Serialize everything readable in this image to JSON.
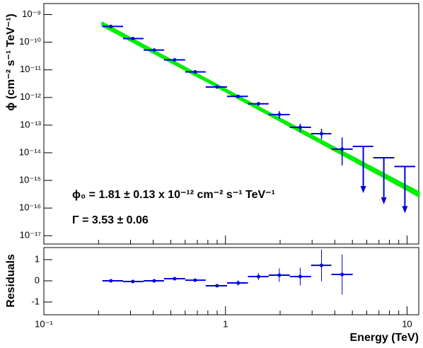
{
  "chart_data": [
    {
      "type": "scatter",
      "ylabel": "ϕ (cm⁻² s⁻¹ TeV⁻¹)",
      "ylog": true,
      "ylim": [
        5e-18,
        2.5e-09
      ],
      "yticks": [
        {
          "value": 1e-09,
          "label": "10⁻⁹"
        },
        {
          "value": 1e-10,
          "label": "10⁻¹⁰"
        },
        {
          "value": 1e-11,
          "label": "10⁻¹¹"
        },
        {
          "value": 1e-12,
          "label": "10⁻¹²"
        },
        {
          "value": 1e-13,
          "label": "10⁻¹³"
        },
        {
          "value": 1e-14,
          "label": "10⁻¹⁴"
        },
        {
          "value": 1e-15,
          "label": "10⁻¹⁵"
        },
        {
          "value": 1e-16,
          "label": "10⁻¹⁶"
        },
        {
          "value": 1e-17,
          "label": "10⁻¹⁷"
        }
      ],
      "annotations": [
        "ϕ₀ = 1.81 ± 0.13  x 10⁻¹² cm⁻² s⁻¹ TeV⁻¹",
        "Γ = 3.53 ± 0.06"
      ],
      "fit": {
        "color": "#00ee00",
        "norm": 1.81e-12,
        "norm_err": 1.3e-13,
        "index": 3.53,
        "index_err": 0.06,
        "xrange": [
          0.21,
          11.6
        ]
      },
      "points": {
        "color": "#0000dd",
        "x": [
          0.234,
          0.309,
          0.405,
          0.525,
          0.681,
          0.898,
          1.175,
          1.52,
          1.98,
          2.58,
          3.38,
          4.39
        ],
        "values": [
          3.7e-10,
          1.35e-10,
          5.2e-11,
          2.3e-11,
          8.4e-12,
          2.4e-12,
          1.1e-12,
          5.9e-13,
          2.4e-13,
          8.3e-14,
          4.9e-14,
          1.35e-14
        ],
        "y_low": [
          3.4e-10,
          1.24e-10,
          4.8e-11,
          2.1e-11,
          7.6e-12,
          2.15e-12,
          9.6e-13,
          5e-13,
          1.7e-13,
          5.5e-14,
          3.1e-14,
          3.5e-15
        ],
        "y_high": [
          4e-10,
          1.46e-10,
          5.6e-11,
          2.5e-11,
          9.2e-12,
          2.65e-12,
          1.25e-12,
          6.8e-13,
          3.2e-13,
          1.12e-13,
          7.4e-14,
          3.6e-14
        ],
        "x_low": [
          0.21,
          0.273,
          0.354,
          0.459,
          0.6,
          0.778,
          1.02,
          1.33,
          1.73,
          2.26,
          2.96,
          3.83
        ],
        "x_high": [
          0.273,
          0.354,
          0.459,
          0.6,
          0.778,
          1.02,
          1.33,
          1.73,
          2.26,
          2.96,
          3.83,
          5.02
        ]
      },
      "upper_limits": {
        "color": "#0000dd",
        "x": [
          5.74,
          7.45,
          9.73
        ],
        "values": [
          1.7e-14,
          6.6e-15,
          3.2e-15
        ],
        "x_low": [
          5.02,
          6.51,
          8.51
        ],
        "x_high": [
          6.51,
          8.51,
          11.1
        ]
      }
    },
    {
      "type": "scatter",
      "xlabel": "Energy (TeV)",
      "ylabel": "Residuals",
      "xlog": true,
      "xlim": [
        0.1,
        11.6
      ],
      "xticks": [
        {
          "value": 0.1,
          "label": "10⁻¹"
        },
        1,
        10
      ],
      "xminor": [
        0.2,
        0.3,
        0.4,
        0.5,
        0.6,
        0.7,
        0.8,
        0.9,
        2,
        3,
        4,
        5,
        6,
        7,
        8,
        9
      ],
      "ylim": [
        -1.6,
        1.57
      ],
      "yticks": [
        -1,
        0,
        1
      ],
      "points": {
        "color": "#0000dd",
        "x": [
          0.234,
          0.309,
          0.405,
          0.525,
          0.681,
          0.898,
          1.175,
          1.52,
          1.98,
          2.58,
          3.38,
          4.39
        ],
        "values": [
          0,
          -0.03,
          0,
          0.1,
          0.03,
          -0.23,
          -0.1,
          0.2,
          0.27,
          0.2,
          0.73,
          0.3
        ],
        "errors": [
          0.03,
          0.03,
          0.03,
          0.04,
          0.05,
          0.07,
          0.12,
          0.17,
          0.32,
          0.42,
          0.75,
          0.95
        ],
        "x_low": [
          0.21,
          0.273,
          0.354,
          0.459,
          0.6,
          0.778,
          1.02,
          1.33,
          1.73,
          2.26,
          2.96,
          3.83
        ],
        "x_high": [
          0.273,
          0.354,
          0.459,
          0.6,
          0.778,
          1.02,
          1.33,
          1.73,
          2.26,
          2.96,
          3.83,
          5.02
        ]
      }
    }
  ]
}
